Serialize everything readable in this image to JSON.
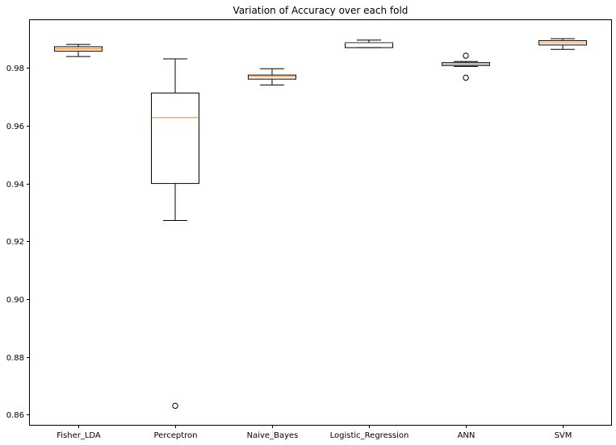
{
  "chart_data": {
    "type": "box",
    "title": "Variation of Accuracy over each fold",
    "xlabel": "",
    "ylabel": "",
    "ylim": [
      0.8565,
      0.9965
    ],
    "yticks": [
      0.86,
      0.88,
      0.9,
      0.92,
      0.94,
      0.96,
      0.98
    ],
    "ytick_labels": [
      "0.86",
      "0.88",
      "0.90",
      "0.92",
      "0.94",
      "0.96",
      "0.98"
    ],
    "grid": false,
    "box_color": "#000000",
    "median_color": "#ff7f0e",
    "categories": [
      "Fisher_LDA",
      "Perceptron",
      "Naive_Bayes",
      "Logistic_Regression",
      "ANN",
      "SVM"
    ],
    "boxes": [
      {
        "label": "Fisher_LDA",
        "whisker_low": 0.9839,
        "q1": 0.9858,
        "median": 0.9866,
        "q3": 0.9873,
        "whisker_high": 0.9881,
        "outliers": []
      },
      {
        "label": "Perceptron",
        "whisker_low": 0.9272,
        "q1": 0.94,
        "median": 0.9628,
        "q3": 0.9713,
        "whisker_high": 0.9831,
        "outliers": [
          0.8631
        ]
      },
      {
        "label": "Naive_Bayes",
        "whisker_low": 0.9741,
        "q1": 0.9761,
        "median": 0.977,
        "q3": 0.9775,
        "whisker_high": 0.9797,
        "outliers": []
      },
      {
        "label": "Logistic_Regression",
        "whisker_low": 0.987,
        "q1": 0.987,
        "median": 0.9886,
        "q3": 0.9887,
        "whisker_high": 0.9896,
        "outliers": []
      },
      {
        "label": "ANN",
        "whisker_low": 0.9805,
        "q1": 0.9808,
        "median": 0.9813,
        "q3": 0.9818,
        "whisker_high": 0.9822,
        "outliers": [
          0.9842,
          0.9766
        ]
      },
      {
        "label": "SVM",
        "whisker_low": 0.9864,
        "q1": 0.9879,
        "median": 0.9887,
        "q3": 0.9894,
        "whisker_high": 0.9901,
        "outliers": []
      }
    ]
  }
}
